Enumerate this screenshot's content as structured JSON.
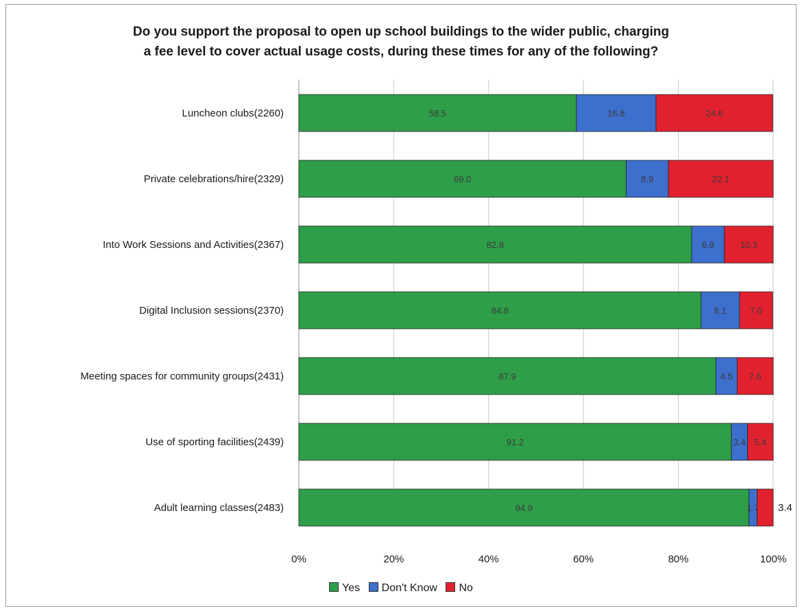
{
  "chart_data": {
    "type": "bar",
    "orientation": "horizontal",
    "stacked": true,
    "title_lines": [
      "Do you support the proposal to open up school buildings to the wider public, charging",
      "a fee level to cover actual usage costs, during these times for any of the following?"
    ],
    "categories": [
      "Luncheon clubs(2260)",
      "Private celebrations/hire(2329)",
      "Into Work Sessions and Activities(2367)",
      "Digital Inclusion sessions(2370)",
      "Meeting spaces for community groups(2431)",
      "Use of sporting facilities(2439)",
      "Adult learning classes(2483)"
    ],
    "series": [
      {
        "name": "Yes",
        "color": "#2e9e48",
        "values": [
          58.5,
          69.0,
          82.8,
          84.8,
          87.9,
          91.2,
          94.9
        ],
        "labels": [
          "58.5",
          "69.0",
          "82.8",
          "84.8",
          "87.9",
          "91.2",
          "94.9"
        ]
      },
      {
        "name": "Don't Know",
        "color": "#3d6fcc",
        "values": [
          16.8,
          8.9,
          6.9,
          8.1,
          4.5,
          3.4,
          1.7
        ],
        "labels": [
          "16.8",
          "8.9",
          "6.9",
          "8.1",
          "4.5",
          "3.4",
          "1.7"
        ]
      },
      {
        "name": "No",
        "color": "#e2212f",
        "values": [
          24.6,
          22.1,
          10.3,
          7.0,
          7.6,
          5.4,
          3.4
        ],
        "labels": [
          "24.6",
          "22.1",
          "10.3",
          "7.0",
          "7.6",
          "5.4",
          "3.4"
        ]
      }
    ],
    "xlim": [
      0,
      100
    ],
    "xticks": [
      "0%",
      "20%",
      "40%",
      "60%",
      "80%",
      "100%"
    ],
    "grid": true,
    "legend_position": "bottom"
  }
}
